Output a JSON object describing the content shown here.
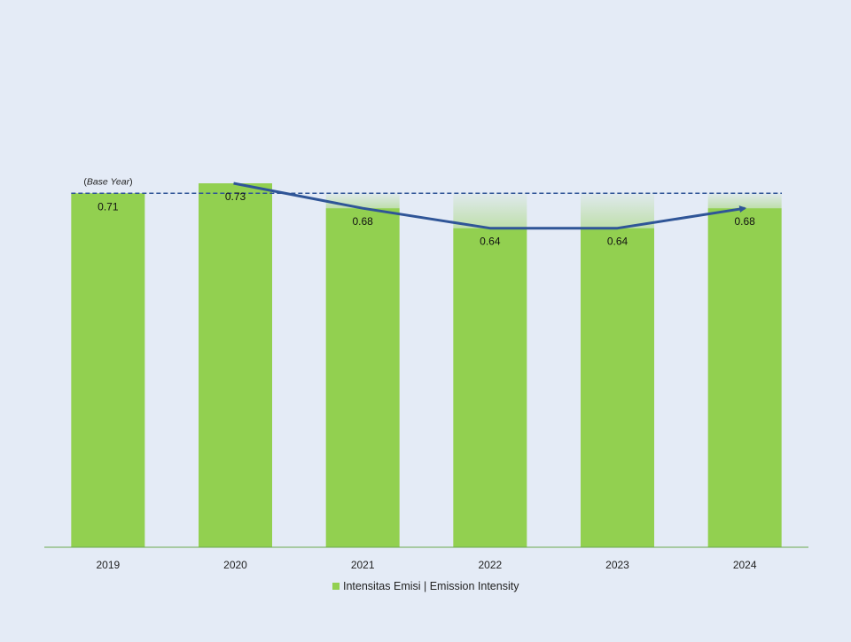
{
  "chart_data": {
    "type": "bar",
    "categories": [
      "2019",
      "2020",
      "2021",
      "2022",
      "2023",
      "2024"
    ],
    "series": [
      {
        "name": "Intensitas Emisi | Emission Intensity",
        "values": [
          0.71,
          0.73,
          0.68,
          0.64,
          0.64,
          0.68
        ]
      }
    ],
    "data_labels": [
      "0.71",
      "0.73",
      "0.68",
      "0.64",
      "0.64",
      "0.68"
    ],
    "baseline": {
      "value": 0.71,
      "label_prefix": "(",
      "label_italic": "Base Year",
      "label_suffix": ")"
    },
    "trend_line": {
      "from_category": "2020",
      "to_category": "2024",
      "arrow_end": true
    },
    "ylim": [
      0,
      0.73
    ],
    "grid": false,
    "legend_position": "bottom",
    "colors": {
      "bar": "#92d050",
      "gap_fill": "#92d050",
      "baseline": "#2f5597",
      "trend": "#2f5597",
      "axis": "#6aa84f",
      "background": "#e4ebf6"
    }
  }
}
